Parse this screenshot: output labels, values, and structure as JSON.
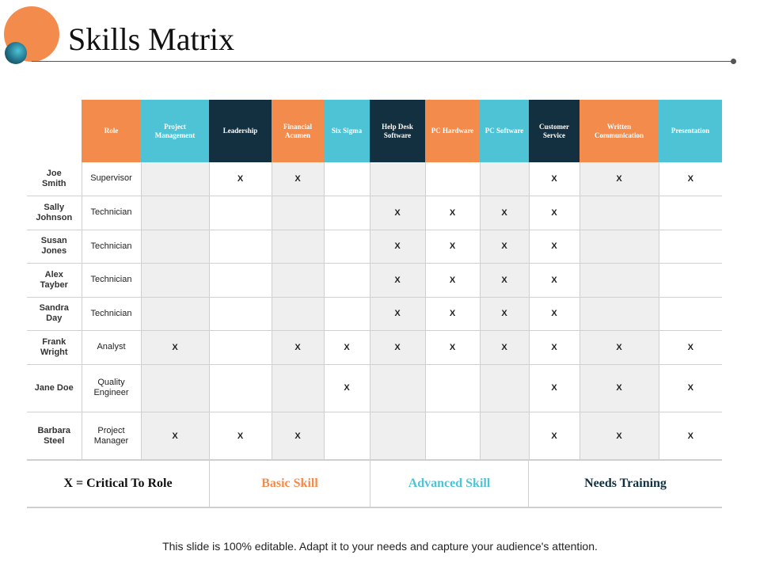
{
  "slide": {
    "title": "Skills Matrix",
    "footer": "This slide is 100% editable. Adapt it to your needs and capture your audience's attention."
  },
  "colors": {
    "orange": "#f28b4c",
    "blue": "#4fc3d6",
    "dark": "#12303f",
    "row_shade": "#efefef"
  },
  "matrix": {
    "columns": [
      {
        "label": "Role",
        "color": "orange"
      },
      {
        "label": "Project Management",
        "color": "blue"
      },
      {
        "label": "Leadership",
        "color": "dark"
      },
      {
        "label": "Financial Acumen",
        "color": "orange"
      },
      {
        "label": "Six Sigma",
        "color": "blue"
      },
      {
        "label": "Help Desk Software",
        "color": "dark"
      },
      {
        "label": "PC Hardware",
        "color": "orange"
      },
      {
        "label": "PC Software",
        "color": "blue"
      },
      {
        "label": "Customer Service",
        "color": "dark"
      },
      {
        "label": "Written Communication",
        "color": "orange"
      },
      {
        "label": "Presentation",
        "color": "blue"
      }
    ],
    "rows": [
      {
        "name": "Joe Smith",
        "role": "Supervisor",
        "cells": [
          "",
          "X",
          "X",
          "",
          "",
          "",
          "",
          "X",
          "X",
          "X"
        ]
      },
      {
        "name": "Sally Johnson",
        "role": "Technician",
        "cells": [
          "",
          "",
          "",
          "",
          "X",
          "X",
          "X",
          "X",
          "",
          ""
        ]
      },
      {
        "name": "Susan Jones",
        "role": "Technician",
        "cells": [
          "",
          "",
          "",
          "",
          "X",
          "X",
          "X",
          "X",
          "",
          ""
        ]
      },
      {
        "name": "Alex Tayber",
        "role": "Technician",
        "cells": [
          "",
          "",
          "",
          "",
          "X",
          "X",
          "X",
          "X",
          "",
          ""
        ]
      },
      {
        "name": "Sandra Day",
        "role": "Technician",
        "cells": [
          "",
          "",
          "",
          "",
          "X",
          "X",
          "X",
          "X",
          "",
          ""
        ]
      },
      {
        "name": "Frank Wright",
        "role": "Analyst",
        "cells": [
          "X",
          "",
          "X",
          "X",
          "X",
          "X",
          "X",
          "X",
          "X",
          "X"
        ]
      },
      {
        "name": "Jane Doe",
        "role": "Quality Engineer",
        "cells": [
          "",
          "",
          "",
          "X",
          "",
          "",
          "",
          "X",
          "X",
          "X"
        ]
      },
      {
        "name": "Barbara Steel",
        "role": "Project Manager",
        "cells": [
          "X",
          "X",
          "X",
          "",
          "",
          "",
          "",
          "X",
          "X",
          "X"
        ]
      }
    ]
  },
  "legend": {
    "key": "X = Critical To Role",
    "basic": "Basic Skill",
    "advanced": "Advanced Skill",
    "training": "Needs Training"
  }
}
